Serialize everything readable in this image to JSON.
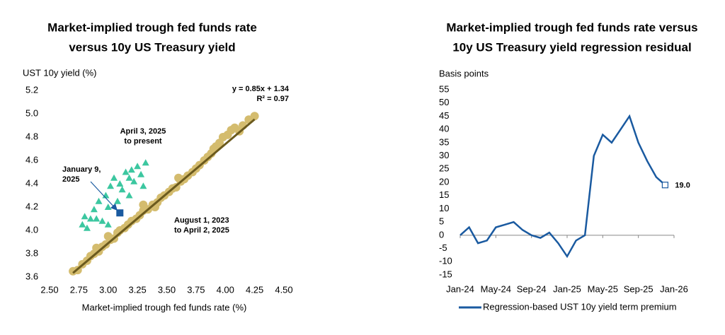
{
  "chart_data": [
    {
      "type": "scatter",
      "title_lines": [
        "Market-implied trough fed funds rate",
        "versus 10y US Treasury yield"
      ],
      "y_label": "UST 10y yield (%)",
      "x_label": "Market-implied trough fed funds rate (%)",
      "xlim": [
        2.5,
        4.5
      ],
      "ylim": [
        3.6,
        5.2
      ],
      "xticks": [
        {
          "value": 2.5,
          "label": "2.50"
        },
        2.75,
        {
          "value": 3,
          "label": "3.00"
        },
        3.25,
        {
          "value": 3.5,
          "label": "3.50"
        },
        3.75,
        {
          "value": 4,
          "label": "4.00"
        },
        4.25,
        {
          "value": 4.5,
          "label": "4.50"
        }
      ],
      "yticks": [
        3.6,
        3.8,
        {
          "value": 4,
          "label": "4.0"
        },
        4.2,
        4.4,
        4.6,
        4.8,
        {
          "value": 5,
          "label": "5.0"
        },
        5.2
      ],
      "series": [
        {
          "color": "#d4bc6e",
          "marker": "circle",
          "x": [
            2.7,
            2.74,
            2.78,
            2.82,
            2.85,
            2.88,
            2.92,
            2.95,
            2.98,
            3.02,
            3.05,
            3.08,
            3.1,
            3.14,
            3.17,
            3.2,
            3.24,
            3.27,
            3.3,
            3.34,
            3.38,
            3.42,
            3.45,
            3.48,
            3.52,
            3.55,
            3.58,
            3.62,
            3.65,
            3.68,
            3.72,
            3.75,
            3.78,
            3.82,
            3.85,
            3.88,
            3.92,
            3.95,
            3.98,
            4.02,
            4.05,
            4.08,
            4.12,
            4.15,
            4.2,
            4.25,
            3.0,
            3.3,
            3.6,
            3.9,
            2.9,
            3.4
          ],
          "values": [
            3.65,
            3.66,
            3.71,
            3.74,
            3.78,
            3.8,
            3.82,
            3.86,
            3.88,
            3.92,
            3.93,
            3.98,
            4.0,
            4.02,
            4.05,
            4.08,
            4.1,
            4.13,
            4.17,
            4.18,
            4.22,
            4.24,
            4.28,
            4.3,
            4.33,
            4.36,
            4.37,
            4.42,
            4.44,
            4.47,
            4.5,
            4.53,
            4.56,
            4.6,
            4.63,
            4.66,
            4.72,
            4.75,
            4.8,
            4.82,
            4.86,
            4.88,
            4.85,
            4.9,
            4.95,
            4.98,
            3.95,
            4.22,
            4.45,
            4.7,
            3.85,
            4.2
          ]
        },
        {
          "color": "#3cc7a0",
          "marker": "triangle",
          "x": [
            2.78,
            2.82,
            2.85,
            2.88,
            2.92,
            2.95,
            2.98,
            3.0,
            3.02,
            3.05,
            3.08,
            3.1,
            3.12,
            3.15,
            3.18,
            3.2,
            3.22,
            3.25,
            3.28,
            3.32,
            3.3,
            2.9,
            3.0,
            3.1,
            2.8,
            3.18
          ],
          "values": [
            4.05,
            4.02,
            4.1,
            4.18,
            4.25,
            4.08,
            4.3,
            4.2,
            4.38,
            4.45,
            4.25,
            4.4,
            4.35,
            4.5,
            4.3,
            4.52,
            4.42,
            4.55,
            4.48,
            4.58,
            4.38,
            4.1,
            4.05,
            4.15,
            4.12,
            4.45
          ]
        },
        {
          "color": "#1a5aa0",
          "marker": "square",
          "x": [
            3.1
          ],
          "values": [
            4.15
          ]
        }
      ],
      "trendline": {
        "color": "#6b5a1e",
        "x": [
          2.7,
          4.25
        ],
        "y": [
          3.635,
          4.9525
        ]
      },
      "annotations": [
        {
          "lines": [
            "y = 0.85x + 1.34",
            "R² = 0.97"
          ],
          "color": "#8a7424"
        },
        {
          "lines": [
            "April 3, 2025",
            "to present"
          ],
          "color": "#2aa888"
        },
        {
          "lines": [
            "January 9,",
            "2025"
          ],
          "color": "#1a5aa0"
        },
        {
          "lines": [
            "August 1, 2023",
            "to April 2, 2025"
          ],
          "color": "#8a7424"
        }
      ]
    },
    {
      "type": "line",
      "title_lines": [
        "Market-implied trough fed funds rate versus",
        "10y US Treasury yield regression residual"
      ],
      "y_label": "Basis points",
      "x": [
        "2024-01",
        "2024-02",
        "2024-03",
        "2024-04",
        "2024-05",
        "2024-06",
        "2024-07",
        "2024-08",
        "2024-09",
        "2024-10",
        "2024-11",
        "2024-12",
        "2025-01",
        "2025-02",
        "2025-03",
        "2025-04",
        "2025-05",
        "2025-06",
        "2025-07",
        "2025-08",
        "2025-09",
        "2025-10",
        "2025-11",
        "2025-12"
      ],
      "xlim": [
        "2024-01",
        "2026-01"
      ],
      "xticks": [
        {
          "value": "2024-01",
          "label": "Jan-24"
        },
        {
          "value": "2024-05",
          "label": "May-24"
        },
        {
          "value": "2024-09",
          "label": "Sep-24"
        },
        {
          "value": "2025-01",
          "label": "Jan-25"
        },
        {
          "value": "2025-05",
          "label": "May-25"
        },
        {
          "value": "2025-09",
          "label": "Sep-25"
        },
        {
          "value": "2026-01",
          "label": "Jan-26"
        }
      ],
      "ylim": [
        -15,
        55
      ],
      "yticks": [
        -15,
        -10,
        -5,
        0,
        5,
        10,
        15,
        20,
        25,
        30,
        35,
        40,
        45,
        50,
        55
      ],
      "series": [
        {
          "name": "Regression-based UST 10y yield term premium",
          "color": "#1a5aa0",
          "values": [
            0,
            3,
            -3,
            -2,
            3,
            4,
            5,
            2,
            0,
            -1,
            1,
            -3,
            -8,
            -2,
            0,
            30,
            38,
            35,
            40,
            45,
            35,
            28,
            22,
            19
          ],
          "value_labels": [
            null,
            null,
            null,
            null,
            null,
            null,
            null,
            null,
            null,
            null,
            null,
            null,
            null,
            null,
            null,
            null,
            null,
            null,
            null,
            null,
            null,
            null,
            null,
            "19.0"
          ]
        }
      ]
    }
  ]
}
